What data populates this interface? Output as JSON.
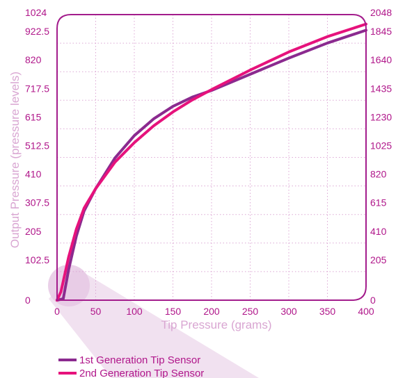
{
  "chart_data": {
    "type": "line",
    "title": "",
    "xlabel": "Tip Pressure (grams)",
    "ylabel": "Output Pressure (pressure levels)",
    "xlim": [
      0,
      400
    ],
    "ylim": [
      0,
      1024
    ],
    "y2lim": [
      0,
      2048
    ],
    "x_ticks": [
      "0",
      "50",
      "100",
      "150",
      "200",
      "250",
      "300",
      "350",
      "400"
    ],
    "y_ticks": [
      "0",
      "102.5",
      "205",
      "307.5",
      "410",
      "512.5",
      "615",
      "717.5",
      "820",
      "922.5",
      "1024"
    ],
    "y2_ticks": [
      "0",
      "205",
      "410",
      "615",
      "820",
      "1025",
      "1230",
      "1435",
      "1640",
      "1845",
      "2048"
    ],
    "grid": true,
    "legend_position": "bottom-left",
    "series": [
      {
        "name": "1st Generation Tip Sensor",
        "color": "#8b2a8f",
        "x": [
          0,
          8,
          15,
          25,
          35,
          50,
          75,
          100,
          125,
          150,
          175,
          200,
          250,
          300,
          350,
          400
        ],
        "y": [
          0,
          5,
          110,
          230,
          320,
          400,
          510,
          590,
          650,
          695,
          728,
          752,
          810,
          868,
          922,
          968
        ]
      },
      {
        "name": "2nd Generation Tip Sensor",
        "color": "#e6127c",
        "x": [
          0,
          5,
          15,
          25,
          35,
          50,
          75,
          100,
          125,
          150,
          175,
          200,
          250,
          300,
          350,
          400
        ],
        "y": [
          0,
          30,
          155,
          255,
          330,
          400,
          495,
          565,
          625,
          675,
          718,
          755,
          825,
          890,
          945,
          990
        ]
      }
    ],
    "colors": {
      "frame": "#a31c8c",
      "grid": "#dca7d4",
      "tick_text": "#b0168a",
      "axis_title": "#d9a6d2",
      "magnifier": "#e6c8e4"
    }
  }
}
